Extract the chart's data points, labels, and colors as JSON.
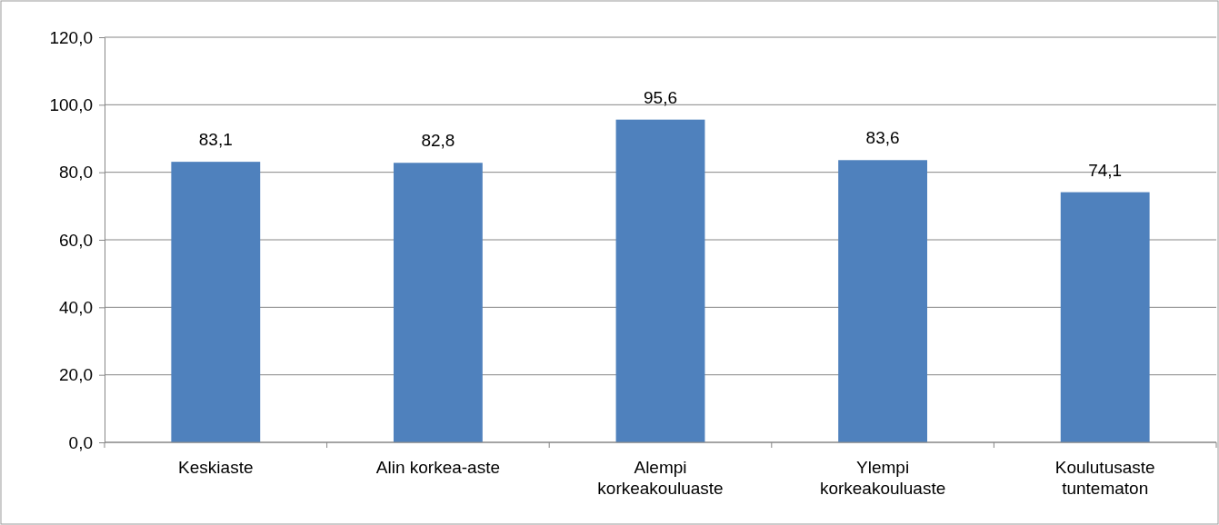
{
  "chart_data": {
    "type": "bar",
    "categories": [
      "Keskiaste",
      "Alin korkea-aste",
      "Alempi korkeakouluaste",
      "Ylempi korkeakouluaste",
      "Koulutusaste tuntematon"
    ],
    "values": [
      83.1,
      82.8,
      95.6,
      83.6,
      74.1
    ],
    "value_labels": [
      "83,1",
      "82,8",
      "95,6",
      "83,6",
      "74,1"
    ],
    "color": "#4f81bd",
    "ylim": [
      0,
      120
    ],
    "yticks": [
      {
        "value": 0,
        "label": "0,0"
      },
      {
        "value": 20,
        "label": "20,0"
      },
      {
        "value": 40,
        "label": "40,0"
      },
      {
        "value": 60,
        "label": "60,0"
      },
      {
        "value": 80,
        "label": "80,0"
      },
      {
        "value": 100,
        "label": "100,0"
      },
      {
        "value": 120,
        "label": "120,0"
      }
    ],
    "grid": "y"
  }
}
